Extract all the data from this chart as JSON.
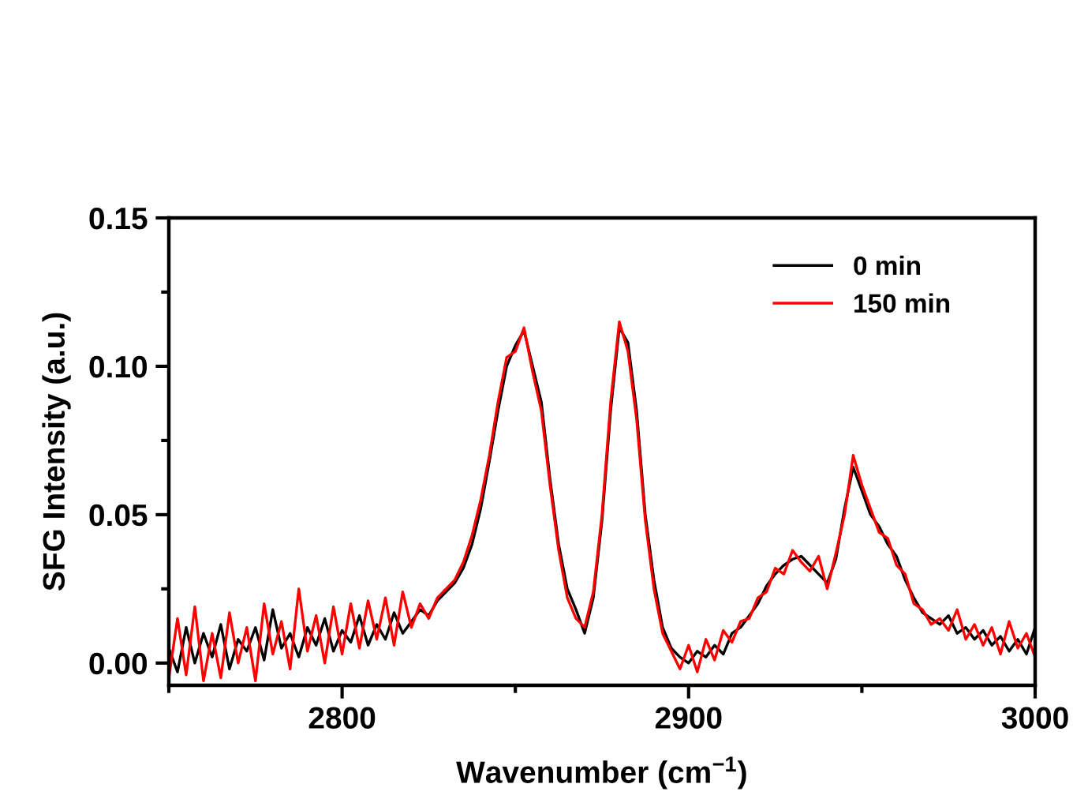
{
  "chart_data": {
    "type": "line",
    "xlabel": "Wavenumber (cm$^{−1}$)",
    "ylabel": "SFG Intensity (a.u.)",
    "x": [
      2750,
      2752.5,
      2755,
      2757.5,
      2760,
      2762.5,
      2765,
      2767.5,
      2770,
      2772.5,
      2775,
      2777.5,
      2780,
      2782.5,
      2785,
      2787.5,
      2790,
      2792.5,
      2795,
      2797.5,
      2800,
      2802.5,
      2805,
      2807.5,
      2810,
      2812.5,
      2815,
      2817.5,
      2820,
      2822.5,
      2825,
      2827.5,
      2830,
      2832.5,
      2835,
      2837.5,
      2840,
      2842.5,
      2845,
      2847.5,
      2850,
      2852.5,
      2855,
      2857.5,
      2860,
      2862.5,
      2865,
      2867.5,
      2870,
      2872.5,
      2875,
      2877.5,
      2880,
      2882.5,
      2885,
      2887.5,
      2890,
      2892.5,
      2895,
      2897.5,
      2900,
      2902.5,
      2905,
      2907.5,
      2910,
      2912.5,
      2915,
      2917.5,
      2920,
      2922.5,
      2925,
      2927.5,
      2930,
      2932.5,
      2935,
      2937.5,
      2940,
      2942.5,
      2945,
      2947.5,
      2950,
      2952.5,
      2955,
      2957.5,
      2960,
      2962.5,
      2965,
      2967.5,
      2970,
      2972.5,
      2975,
      2977.5,
      2980,
      2982.5,
      2985,
      2987.5,
      2990,
      2992.5,
      2995,
      2997.5,
      3000
    ],
    "series": [
      {
        "name": "0 min",
        "color": "#000000",
        "values": [
          0.005,
          -0.003,
          0.012,
          0.0,
          0.01,
          0.002,
          0.013,
          -0.002,
          0.008,
          0.004,
          0.012,
          0.001,
          0.018,
          0.005,
          0.01,
          0.002,
          0.012,
          0.006,
          0.015,
          0.004,
          0.011,
          0.007,
          0.016,
          0.006,
          0.013,
          0.008,
          0.017,
          0.01,
          0.014,
          0.018,
          0.016,
          0.021,
          0.024,
          0.027,
          0.032,
          0.04,
          0.052,
          0.068,
          0.085,
          0.1,
          0.107,
          0.112,
          0.1,
          0.088,
          0.062,
          0.04,
          0.025,
          0.018,
          0.01,
          0.022,
          0.048,
          0.085,
          0.113,
          0.108,
          0.085,
          0.05,
          0.028,
          0.012,
          0.005,
          0.002,
          0.0,
          0.004,
          0.002,
          0.006,
          0.003,
          0.01,
          0.012,
          0.016,
          0.02,
          0.026,
          0.03,
          0.033,
          0.035,
          0.036,
          0.033,
          0.03,
          0.027,
          0.035,
          0.052,
          0.066,
          0.058,
          0.05,
          0.046,
          0.04,
          0.036,
          0.028,
          0.022,
          0.017,
          0.015,
          0.013,
          0.016,
          0.01,
          0.012,
          0.008,
          0.011,
          0.006,
          0.009,
          0.004,
          0.008,
          0.003,
          0.012
        ]
      },
      {
        "name": "150 min",
        "color": "#ff0000",
        "values": [
          -0.005,
          0.015,
          -0.004,
          0.019,
          -0.006,
          0.01,
          -0.005,
          0.017,
          0.0,
          0.012,
          -0.006,
          0.02,
          0.003,
          0.014,
          -0.002,
          0.025,
          0.004,
          0.016,
          0.0,
          0.019,
          0.003,
          0.02,
          0.005,
          0.021,
          0.008,
          0.022,
          0.006,
          0.024,
          0.012,
          0.02,
          0.015,
          0.022,
          0.025,
          0.028,
          0.034,
          0.043,
          0.055,
          0.07,
          0.088,
          0.103,
          0.105,
          0.113,
          0.098,
          0.085,
          0.06,
          0.038,
          0.022,
          0.015,
          0.012,
          0.024,
          0.05,
          0.088,
          0.115,
          0.105,
          0.082,
          0.048,
          0.025,
          0.01,
          0.004,
          -0.002,
          0.006,
          -0.003,
          0.008,
          0.001,
          0.011,
          0.007,
          0.014,
          0.015,
          0.022,
          0.024,
          0.032,
          0.03,
          0.038,
          0.034,
          0.031,
          0.036,
          0.025,
          0.037,
          0.05,
          0.07,
          0.06,
          0.052,
          0.044,
          0.042,
          0.033,
          0.03,
          0.02,
          0.018,
          0.013,
          0.015,
          0.011,
          0.018,
          0.008,
          0.013,
          0.006,
          0.012,
          0.003,
          0.014,
          0.005,
          0.01,
          0.002
        ]
      }
    ],
    "xlim": [
      2750,
      3000
    ],
    "ylim": [
      -0.0075,
      0.15
    ],
    "xticks": [
      {
        "value": 2750,
        "label": null
      },
      2800,
      {
        "value": 2850,
        "label": null
      },
      2900,
      {
        "value": 2950,
        "label": null
      },
      3000
    ],
    "yticks": [
      {
        "value": 0.0,
        "label": "0.00"
      },
      {
        "value": 0.025,
        "label": null
      },
      {
        "value": 0.05,
        "label": "0.05"
      },
      {
        "value": 0.075,
        "label": null
      },
      {
        "value": 0.1,
        "label": "0.10"
      },
      {
        "value": 0.125,
        "label": null
      },
      {
        "value": 0.15,
        "label": "0.15"
      }
    ],
    "legend": "top right",
    "grid": false,
    "line_style": "solid"
  }
}
